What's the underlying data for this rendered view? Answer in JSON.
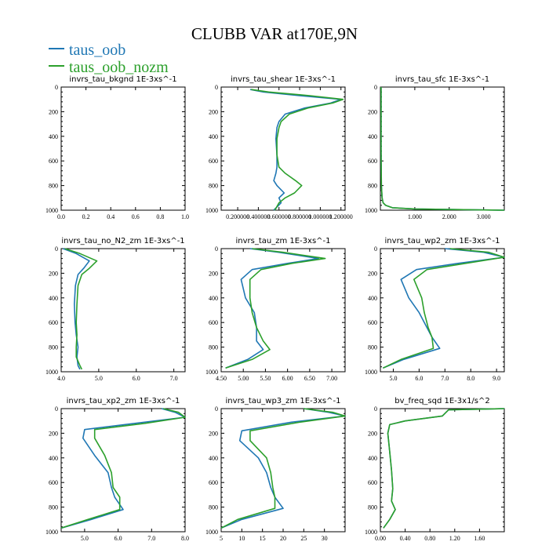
{
  "figure": {
    "title": "CLUBB VAR at170E,9N",
    "legend": [
      {
        "name": "taus_oob",
        "color": "#1f77b4"
      },
      {
        "name": "taus_oob_nozm",
        "color": "#2ca02c"
      }
    ]
  },
  "chart_data": [
    {
      "type": "line",
      "title": "invrs_tau_bkgnd   1E-3xs^-1",
      "xlim": [
        0,
        1.0
      ],
      "ylim": [
        1000,
        0
      ],
      "xticks": [
        "0.0",
        "0.2",
        "0.4",
        "0.6",
        "0.8",
        "1.0"
      ],
      "xtick_values": [
        0,
        0.2,
        0.4,
        0.6,
        0.8,
        1.0
      ],
      "yticks": [
        "0",
        "200",
        "400",
        "600",
        "800",
        "1000"
      ],
      "series": []
    },
    {
      "type": "line",
      "title": "invrs_tau_shear   1E-3xs^-1",
      "xlim": [
        0.04,
        1.24
      ],
      "ylim": [
        1000,
        0
      ],
      "xticks": [
        "0.200000",
        "0.400000",
        "0.600000",
        "0.800000",
        "1.000000",
        "1.200000"
      ],
      "xtick_values": [
        0.2,
        0.4,
        0.6,
        0.8,
        1.0,
        1.2
      ],
      "yticks": [
        "0",
        "200",
        "400",
        "600",
        "800",
        "1000"
      ],
      "series": [
        {
          "name": "taus_oob",
          "color": "#1f77b4",
          "x": [
            0.32,
            0.45,
            0.8,
            1.2,
            1.1,
            0.85,
            0.66,
            0.6,
            0.58,
            0.57,
            0.58,
            0.58,
            0.57,
            0.55,
            0.58,
            0.65,
            0.6,
            0.62,
            0.55
          ],
          "y": [
            20,
            40,
            70,
            100,
            130,
            170,
            220,
            280,
            330,
            420,
            550,
            650,
            700,
            760,
            800,
            860,
            900,
            940,
            1000
          ]
        },
        {
          "name": "taus_oob_nozm",
          "color": "#2ca02c",
          "x": [
            0.33,
            0.5,
            0.9,
            1.22,
            1.12,
            0.88,
            0.7,
            0.62,
            0.6,
            0.58,
            0.58,
            0.6,
            0.66,
            0.76,
            0.82,
            0.75,
            0.66,
            0.6,
            0.56
          ],
          "y": [
            20,
            40,
            70,
            100,
            130,
            170,
            220,
            280,
            330,
            420,
            550,
            650,
            700,
            760,
            800,
            860,
            900,
            940,
            1000
          ]
        }
      ]
    },
    {
      "type": "line",
      "title": "invrs_tau_sfc   1E-3xs^-1",
      "xlim": [
        0,
        3.6
      ],
      "ylim": [
        1000,
        0
      ],
      "xticks": [
        "1.000",
        "2.000",
        "3.000"
      ],
      "xtick_values": [
        1.0,
        2.0,
        3.0
      ],
      "yticks": [
        "0",
        "200",
        "400",
        "600",
        "800",
        "1000"
      ],
      "series": [
        {
          "name": "taus_oob",
          "color": "#1f77b4",
          "x": [
            0.02,
            0.02,
            0.03,
            0.05,
            0.08,
            0.15,
            0.35,
            1.0,
            3.6
          ],
          "y": [
            0,
            500,
            800,
            900,
            940,
            960,
            980,
            990,
            1000
          ]
        },
        {
          "name": "taus_oob_nozm",
          "color": "#2ca02c",
          "x": [
            0.02,
            0.02,
            0.03,
            0.05,
            0.08,
            0.15,
            0.35,
            1.0,
            3.6
          ],
          "y": [
            0,
            500,
            800,
            900,
            940,
            960,
            980,
            990,
            1000
          ]
        }
      ]
    },
    {
      "type": "line",
      "title": "invrs_tau_no_N2_zm   1E-3xs^-1",
      "xlim": [
        4.0,
        7.3
      ],
      "ylim": [
        1000,
        0
      ],
      "xticks": [
        "4.0",
        "5.0",
        "6.0",
        "7.0"
      ],
      "xtick_values": [
        4.0,
        5.0,
        6.0,
        7.0
      ],
      "yticks": [
        "0",
        "200",
        "400",
        "600",
        "800",
        "1000"
      ],
      "series": [
        {
          "name": "taus_oob",
          "color": "#1f77b4",
          "x": [
            4.05,
            4.4,
            4.75,
            4.6,
            4.45,
            4.38,
            4.35,
            4.37,
            4.4,
            4.45,
            4.42,
            4.45,
            4.5
          ],
          "y": [
            0,
            40,
            100,
            160,
            210,
            300,
            450,
            600,
            700,
            800,
            880,
            950,
            980
          ]
        },
        {
          "name": "taus_oob_nozm",
          "color": "#2ca02c",
          "x": [
            4.1,
            4.5,
            4.95,
            4.75,
            4.55,
            4.45,
            4.42,
            4.4,
            4.42,
            4.4,
            4.4,
            4.5,
            4.55
          ],
          "y": [
            0,
            40,
            100,
            160,
            210,
            300,
            450,
            600,
            700,
            800,
            880,
            950,
            980
          ]
        }
      ]
    },
    {
      "type": "line",
      "title": "invrs_tau_zm   1E-3xs^-1",
      "xlim": [
        4.5,
        7.3
      ],
      "ylim": [
        1000,
        0
      ],
      "xticks": [
        "4.50",
        "5.00",
        "5.50",
        "6.00",
        "6.50",
        "7.00"
      ],
      "xtick_values": [
        4.5,
        5.0,
        5.5,
        6.0,
        6.5,
        7.0
      ],
      "yticks": [
        "0",
        "200",
        "400",
        "600",
        "800",
        "1000"
      ],
      "series": [
        {
          "name": "taus_oob",
          "color": "#1f77b4",
          "x": [
            5.15,
            5.8,
            6.7,
            6.0,
            5.2,
            4.95,
            5.05,
            5.25,
            5.3,
            5.3,
            5.45,
            5.1,
            4.6
          ],
          "y": [
            0,
            30,
            80,
            120,
            170,
            250,
            400,
            520,
            640,
            750,
            820,
            900,
            970
          ]
        },
        {
          "name": "taus_oob_nozm",
          "color": "#2ca02c",
          "x": [
            5.2,
            5.9,
            6.85,
            6.1,
            5.4,
            5.15,
            5.15,
            5.2,
            5.3,
            5.45,
            5.6,
            5.2,
            4.6
          ],
          "y": [
            0,
            30,
            80,
            120,
            170,
            250,
            400,
            520,
            640,
            750,
            820,
            900,
            970
          ]
        }
      ]
    },
    {
      "type": "line",
      "title": "invrs_tau_wp2_zm   1E-3xs^-1",
      "xlim": [
        4.5,
        9.3
      ],
      "ylim": [
        1000,
        0
      ],
      "xticks": [
        "5.0",
        "6.0",
        "7.0",
        "8.0",
        "9.0"
      ],
      "xtick_values": [
        5.0,
        6.0,
        7.0,
        8.0,
        9.0
      ],
      "yticks": [
        "0",
        "200",
        "400",
        "600",
        "800",
        "1000"
      ],
      "series": [
        {
          "name": "taus_oob",
          "color": "#1f77b4",
          "x": [
            7.0,
            8.5,
            9.3,
            7.5,
            5.9,
            5.3,
            5.6,
            6.0,
            6.3,
            6.5,
            6.8,
            5.4,
            4.6
          ],
          "y": [
            0,
            30,
            70,
            120,
            170,
            250,
            400,
            520,
            640,
            720,
            810,
            900,
            970
          ]
        },
        {
          "name": "taus_oob_nozm",
          "color": "#2ca02c",
          "x": [
            7.2,
            8.7,
            9.3,
            7.8,
            6.3,
            5.8,
            6.1,
            6.2,
            6.35,
            6.5,
            6.55,
            5.3,
            4.6
          ],
          "y": [
            0,
            30,
            70,
            120,
            170,
            250,
            400,
            520,
            640,
            720,
            810,
            900,
            970
          ]
        }
      ]
    },
    {
      "type": "line",
      "title": "invrs_tau_xp2_zm   1E-3xs^-1",
      "xlim": [
        4.3,
        8.0
      ],
      "ylim": [
        1000,
        0
      ],
      "xticks": [
        "5.0",
        "6.0",
        "7.0",
        "8.0"
      ],
      "xtick_values": [
        5.0,
        6.0,
        7.0,
        8.0
      ],
      "yticks": [
        "0",
        "200",
        "400",
        "600",
        "800",
        "1000"
      ],
      "series": [
        {
          "name": "taus_oob",
          "color": "#1f77b4",
          "x": [
            7.3,
            7.7,
            8.0,
            6.5,
            5.0,
            4.95,
            5.3,
            5.7,
            5.8,
            5.9,
            6.15,
            5.2,
            4.3
          ],
          "y": [
            0,
            30,
            70,
            120,
            170,
            240,
            380,
            520,
            640,
            720,
            820,
            900,
            970
          ]
        },
        {
          "name": "taus_oob_nozm",
          "color": "#2ca02c",
          "x": [
            7.35,
            7.8,
            8.0,
            6.8,
            5.3,
            5.3,
            5.6,
            5.8,
            5.85,
            6.05,
            6.05,
            5.1,
            4.3
          ],
          "y": [
            0,
            30,
            70,
            120,
            170,
            240,
            380,
            520,
            640,
            720,
            820,
            900,
            970
          ]
        }
      ]
    },
    {
      "type": "line",
      "title": "invrs_tau_wp3_zm   1E-3xs^-1",
      "xlim": [
        5,
        35
      ],
      "ylim": [
        1000,
        0
      ],
      "xticks": [
        "5",
        "10",
        "15",
        "20",
        "25",
        "30"
      ],
      "xtick_values": [
        5,
        10,
        15,
        20,
        25,
        30
      ],
      "yticks": [
        "0",
        "200",
        "400",
        "600",
        "800",
        "1000"
      ],
      "series": [
        {
          "name": "taus_oob",
          "color": "#1f77b4",
          "x": [
            25,
            31,
            35,
            22,
            10,
            9.5,
            14,
            16,
            17,
            18,
            20,
            10,
            5
          ],
          "y": [
            0,
            30,
            60,
            110,
            180,
            260,
            400,
            520,
            640,
            720,
            810,
            900,
            970
          ]
        },
        {
          "name": "taus_oob_nozm",
          "color": "#2ca02c",
          "x": [
            25,
            32,
            35,
            24,
            12,
            12,
            16,
            17,
            17.5,
            18,
            18,
            9,
            5
          ],
          "y": [
            0,
            30,
            60,
            110,
            180,
            260,
            400,
            520,
            640,
            720,
            810,
            900,
            970
          ]
        }
      ]
    },
    {
      "type": "line",
      "title": "bv_freq_sqd   1E-3x1/s^2",
      "xlim": [
        0,
        2.0
      ],
      "ylim": [
        1000,
        0
      ],
      "xticks": [
        "0.00",
        "0.40",
        "0.80",
        "1.20",
        "1.60"
      ],
      "xtick_values": [
        0.0,
        0.4,
        0.8,
        1.2,
        1.6
      ],
      "yticks": [
        "0",
        "200",
        "400",
        "600",
        "800",
        "1000"
      ],
      "series": [
        {
          "name": "taus_oob",
          "color": "#1f77b4",
          "x": [
            2.0,
            1.1,
            1.0,
            0.4,
            0.15,
            0.12,
            0.15,
            0.18,
            0.2,
            0.18,
            0.24,
            0.15,
            0.05
          ],
          "y": [
            0,
            10,
            60,
            100,
            130,
            200,
            350,
            500,
            650,
            750,
            820,
            900,
            970
          ]
        },
        {
          "name": "taus_oob_nozm",
          "color": "#2ca02c",
          "x": [
            2.0,
            1.1,
            1.0,
            0.4,
            0.15,
            0.12,
            0.15,
            0.18,
            0.2,
            0.18,
            0.24,
            0.15,
            0.05
          ],
          "y": [
            0,
            10,
            60,
            100,
            130,
            200,
            350,
            500,
            650,
            750,
            820,
            900,
            970
          ]
        }
      ]
    }
  ]
}
